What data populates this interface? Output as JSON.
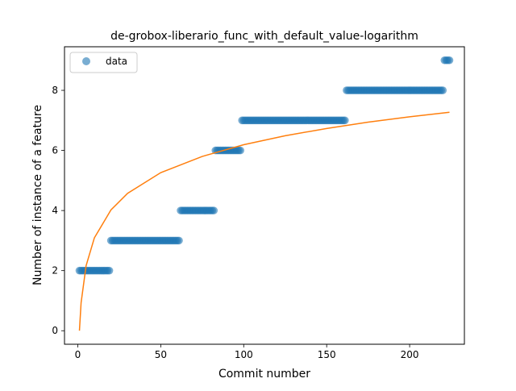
{
  "chart_data": {
    "type": "scatter",
    "title": "de-grobox-liberario_func_with_default_value-logarithm",
    "xlabel": "Commit number",
    "ylabel": "Number of instance of a feature",
    "xlim": [
      -8,
      233
    ],
    "ylim": [
      -0.45,
      9.45
    ],
    "xticks": [
      0,
      50,
      100,
      150,
      200
    ],
    "yticks": [
      0,
      2,
      4,
      6,
      8
    ],
    "grid": false,
    "legend": {
      "placement": "top-left",
      "entries": [
        "data"
      ]
    },
    "colors": {
      "data": "#1f77b4",
      "fit": "#ff7f0e"
    },
    "series": [
      {
        "name": "data",
        "kind": "scatter",
        "segments": [
          {
            "x_start": 1,
            "x_end": 19,
            "y": 2
          },
          {
            "x_start": 20,
            "x_end": 61,
            "y": 3
          },
          {
            "x_start": 62,
            "x_end": 82,
            "y": 4
          },
          {
            "x_start": 83,
            "x_end": 98,
            "y": 6
          },
          {
            "x_start": 99,
            "x_end": 161,
            "y": 7
          },
          {
            "x_start": 162,
            "x_end": 220,
            "y": 8
          },
          {
            "x_start": 221,
            "x_end": 224,
            "y": 9
          }
        ]
      },
      {
        "kind": "line",
        "function": "logarithm",
        "points": [
          [
            1,
            0.0
          ],
          [
            2,
            0.93
          ],
          [
            5,
            2.16
          ],
          [
            10,
            3.09
          ],
          [
            20,
            4.02
          ],
          [
            30,
            4.57
          ],
          [
            50,
            5.26
          ],
          [
            75,
            5.8
          ],
          [
            100,
            6.19
          ],
          [
            125,
            6.49
          ],
          [
            150,
            6.73
          ],
          [
            175,
            6.94
          ],
          [
            200,
            7.12
          ],
          [
            224,
            7.27
          ]
        ]
      }
    ]
  }
}
